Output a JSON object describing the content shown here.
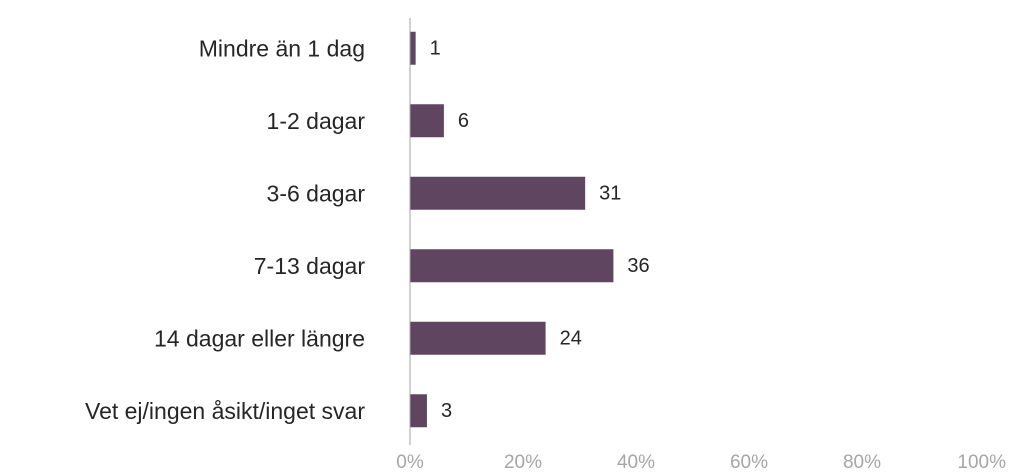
{
  "chart_data": {
    "type": "bar",
    "orientation": "horizontal",
    "categories": [
      "Mindre än 1 dag",
      "1-2 dagar",
      "3-6 dagar",
      "7-13 dagar",
      "14 dagar eller längre",
      "Vet ej/ingen åsikt/inget svar"
    ],
    "values": [
      1,
      6,
      31,
      36,
      24,
      3
    ],
    "data_labels": [
      "1",
      "6",
      "31",
      "36",
      "24",
      "3"
    ],
    "xlim": [
      0,
      100
    ],
    "x_ticks": [
      0,
      20,
      40,
      60,
      80,
      100
    ],
    "x_tick_labels": [
      "0%",
      "20%",
      "40%",
      "60%",
      "80%",
      "100%"
    ],
    "bar_color": "#604560",
    "axis_color": "#a6a6a6",
    "label_color": "#262626",
    "grid": false,
    "legend": "none"
  }
}
